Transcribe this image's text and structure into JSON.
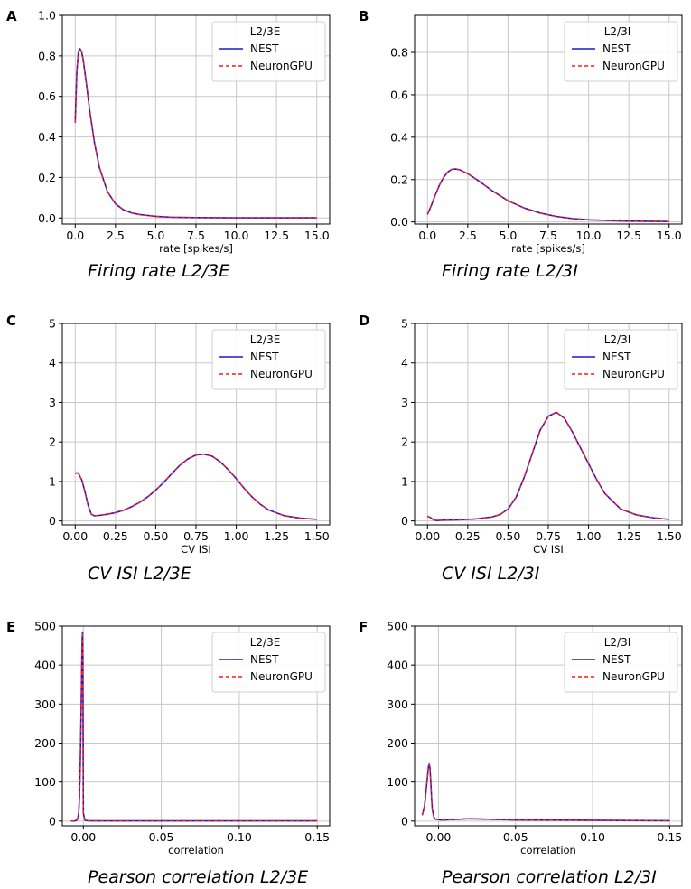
{
  "colors": {
    "nest": "#1a1acc",
    "neurongpu": "#ff1a1a",
    "grid": "#c8c8c8"
  },
  "chart_data": [
    {
      "panel": "A",
      "type": "line",
      "caption": "Firing rate L2/3E",
      "xlabel": "rate [spikes/s]",
      "ylabel": "",
      "xlim": [
        -0.8,
        15.8
      ],
      "ylim": [
        -0.03,
        1.0
      ],
      "xticks": [
        0,
        2.5,
        5,
        7.5,
        10,
        12.5,
        15
      ],
      "xtick_labels": [
        "0.0",
        "2.5",
        "5.0",
        "7.5",
        "10.0",
        "12.5",
        "15.0"
      ],
      "yticks": [
        0,
        0.2,
        0.4,
        0.6,
        0.8,
        1.0
      ],
      "ytick_labels": [
        "0.0",
        "0.2",
        "0.4",
        "0.6",
        "0.8",
        "1.0"
      ],
      "legend": {
        "title": "L2/3E",
        "entries": [
          "NEST",
          "NeuronGPU"
        ],
        "position": "upper right"
      },
      "series": [
        {
          "name": "NEST",
          "style": "solid",
          "x": [
            0,
            0.1,
            0.2,
            0.3,
            0.4,
            0.5,
            0.7,
            0.9,
            1.2,
            1.5,
            2.0,
            2.5,
            3.0,
            3.5,
            4.0,
            5.0,
            6.0,
            7.5,
            10,
            12.5,
            15
          ],
          "y": [
            0.47,
            0.72,
            0.82,
            0.835,
            0.82,
            0.78,
            0.66,
            0.53,
            0.37,
            0.25,
            0.13,
            0.07,
            0.04,
            0.025,
            0.017,
            0.008,
            0.004,
            0.002,
            0.001,
            0.001,
            0.001
          ]
        },
        {
          "name": "NeuronGPU",
          "style": "dashed",
          "x": [
            0,
            0.1,
            0.2,
            0.3,
            0.4,
            0.5,
            0.7,
            0.9,
            1.2,
            1.5,
            2.0,
            2.5,
            3.0,
            3.5,
            4.0,
            5.0,
            6.0,
            7.5,
            10,
            12.5,
            15
          ],
          "y": [
            0.47,
            0.72,
            0.82,
            0.835,
            0.82,
            0.78,
            0.66,
            0.53,
            0.37,
            0.25,
            0.13,
            0.07,
            0.04,
            0.025,
            0.017,
            0.008,
            0.004,
            0.002,
            0.001,
            0.001,
            0.001
          ]
        }
      ]
    },
    {
      "panel": "B",
      "type": "line",
      "caption": "Firing rate L2/3I",
      "xlabel": "rate [spikes/s]",
      "ylabel": "",
      "xlim": [
        -0.8,
        15.8
      ],
      "ylim": [
        -0.01,
        0.975
      ],
      "xticks": [
        0,
        2.5,
        5,
        7.5,
        10,
        12.5,
        15
      ],
      "xtick_labels": [
        "0.0",
        "2.5",
        "5.0",
        "7.5",
        "10.0",
        "12.5",
        "15.0"
      ],
      "yticks": [
        0,
        0.2,
        0.4,
        0.6,
        0.8
      ],
      "ytick_labels": [
        "0.0",
        "0.2",
        "0.4",
        "0.6",
        "0.8"
      ],
      "legend": {
        "title": "L2/3I",
        "entries": [
          "NEST",
          "NeuronGPU"
        ],
        "position": "upper right"
      },
      "series": [
        {
          "name": "NEST",
          "style": "solid",
          "x": [
            0,
            0.25,
            0.5,
            0.75,
            1.0,
            1.25,
            1.5,
            1.75,
            2.0,
            2.5,
            3.0,
            3.5,
            4.0,
            5.0,
            6.0,
            7.0,
            8.0,
            9.0,
            10,
            12.5,
            15
          ],
          "y": [
            0.035,
            0.08,
            0.13,
            0.175,
            0.21,
            0.235,
            0.248,
            0.25,
            0.246,
            0.228,
            0.203,
            0.176,
            0.148,
            0.1,
            0.066,
            0.042,
            0.026,
            0.016,
            0.01,
            0.004,
            0.002
          ]
        },
        {
          "name": "NeuronGPU",
          "style": "dashed",
          "x": [
            0,
            0.25,
            0.5,
            0.75,
            1.0,
            1.25,
            1.5,
            1.75,
            2.0,
            2.5,
            3.0,
            3.5,
            4.0,
            5.0,
            6.0,
            7.0,
            8.0,
            9.0,
            10,
            12.5,
            15
          ],
          "y": [
            0.035,
            0.08,
            0.13,
            0.175,
            0.21,
            0.235,
            0.248,
            0.25,
            0.246,
            0.228,
            0.203,
            0.176,
            0.148,
            0.1,
            0.066,
            0.042,
            0.026,
            0.016,
            0.01,
            0.004,
            0.002
          ]
        }
      ]
    },
    {
      "panel": "C",
      "type": "line",
      "caption": "CV ISI L2/3E",
      "xlabel": "CV ISI",
      "ylabel": "",
      "xlim": [
        -0.08,
        1.58
      ],
      "ylim": [
        -0.1,
        5.0
      ],
      "xticks": [
        0,
        0.25,
        0.5,
        0.75,
        1.0,
        1.25,
        1.5
      ],
      "xtick_labels": [
        "0.00",
        "0.25",
        "0.50",
        "0.75",
        "1.00",
        "1.25",
        "1.50"
      ],
      "yticks": [
        0,
        1,
        2,
        3,
        4,
        5
      ],
      "ytick_labels": [
        "0",
        "1",
        "2",
        "3",
        "4",
        "5"
      ],
      "legend": {
        "title": "L2/3E",
        "entries": [
          "NEST",
          "NeuronGPU"
        ],
        "position": "upper right"
      },
      "series": [
        {
          "name": "NEST",
          "style": "solid",
          "x": [
            0,
            0.01,
            0.02,
            0.04,
            0.06,
            0.08,
            0.1,
            0.12,
            0.15,
            0.2,
            0.25,
            0.3,
            0.35,
            0.4,
            0.45,
            0.5,
            0.55,
            0.6,
            0.65,
            0.7,
            0.75,
            0.8,
            0.85,
            0.9,
            0.95,
            1.0,
            1.05,
            1.1,
            1.15,
            1.2,
            1.3,
            1.4,
            1.5
          ],
          "y": [
            1.2,
            1.22,
            1.2,
            1.05,
            0.75,
            0.4,
            0.17,
            0.13,
            0.14,
            0.17,
            0.21,
            0.27,
            0.36,
            0.47,
            0.61,
            0.78,
            0.98,
            1.2,
            1.41,
            1.57,
            1.67,
            1.69,
            1.64,
            1.5,
            1.3,
            1.07,
            0.82,
            0.6,
            0.42,
            0.28,
            0.13,
            0.07,
            0.04
          ]
        },
        {
          "name": "NeuronGPU",
          "style": "dashed",
          "x": [
            0,
            0.01,
            0.02,
            0.04,
            0.06,
            0.08,
            0.1,
            0.12,
            0.15,
            0.2,
            0.25,
            0.3,
            0.35,
            0.4,
            0.45,
            0.5,
            0.55,
            0.6,
            0.65,
            0.7,
            0.75,
            0.8,
            0.85,
            0.9,
            0.95,
            1.0,
            1.05,
            1.1,
            1.15,
            1.2,
            1.3,
            1.4,
            1.5
          ],
          "y": [
            1.2,
            1.22,
            1.2,
            1.05,
            0.75,
            0.4,
            0.17,
            0.13,
            0.14,
            0.17,
            0.21,
            0.27,
            0.36,
            0.47,
            0.61,
            0.78,
            0.98,
            1.2,
            1.41,
            1.57,
            1.67,
            1.69,
            1.64,
            1.5,
            1.3,
            1.07,
            0.82,
            0.6,
            0.42,
            0.28,
            0.13,
            0.07,
            0.04
          ]
        }
      ]
    },
    {
      "panel": "D",
      "type": "line",
      "caption": "CV ISI L2/3I",
      "xlabel": "CV ISI",
      "ylabel": "",
      "xlim": [
        -0.08,
        1.58
      ],
      "ylim": [
        -0.1,
        5.0
      ],
      "xticks": [
        0,
        0.25,
        0.5,
        0.75,
        1.0,
        1.25,
        1.5
      ],
      "xtick_labels": [
        "0.00",
        "0.25",
        "0.50",
        "0.75",
        "1.00",
        "1.25",
        "1.50"
      ],
      "yticks": [
        0,
        1,
        2,
        3,
        4,
        5
      ],
      "ytick_labels": [
        "0",
        "1",
        "2",
        "3",
        "4",
        "5"
      ],
      "legend": {
        "title": "L2/3I",
        "entries": [
          "NEST",
          "NeuronGPU"
        ],
        "position": "upper right"
      },
      "series": [
        {
          "name": "NEST",
          "style": "solid",
          "x": [
            0,
            0.02,
            0.04,
            0.06,
            0.1,
            0.2,
            0.3,
            0.4,
            0.45,
            0.5,
            0.55,
            0.6,
            0.65,
            0.7,
            0.75,
            0.8,
            0.85,
            0.9,
            0.95,
            1.0,
            1.05,
            1.1,
            1.2,
            1.3,
            1.4,
            1.5
          ],
          "y": [
            0.12,
            0.08,
            0.02,
            0.01,
            0.02,
            0.03,
            0.05,
            0.1,
            0.16,
            0.3,
            0.6,
            1.1,
            1.7,
            2.3,
            2.65,
            2.75,
            2.6,
            2.25,
            1.85,
            1.45,
            1.05,
            0.7,
            0.3,
            0.15,
            0.08,
            0.04
          ]
        },
        {
          "name": "NeuronGPU",
          "style": "dashed",
          "x": [
            0,
            0.02,
            0.04,
            0.06,
            0.1,
            0.2,
            0.3,
            0.4,
            0.45,
            0.5,
            0.55,
            0.6,
            0.65,
            0.7,
            0.75,
            0.8,
            0.85,
            0.9,
            0.95,
            1.0,
            1.05,
            1.1,
            1.2,
            1.3,
            1.4,
            1.5
          ],
          "y": [
            0.12,
            0.08,
            0.02,
            0.01,
            0.02,
            0.03,
            0.05,
            0.1,
            0.16,
            0.3,
            0.6,
            1.1,
            1.7,
            2.3,
            2.65,
            2.75,
            2.6,
            2.25,
            1.85,
            1.45,
            1.05,
            0.7,
            0.3,
            0.15,
            0.08,
            0.04
          ]
        }
      ]
    },
    {
      "panel": "E",
      "type": "line",
      "caption": "Pearson correlation L2/3E",
      "xlabel": "correlation",
      "ylabel": "",
      "xlim": [
        -0.0135,
        0.158
      ],
      "ylim": [
        -12,
        500
      ],
      "xticks": [
        0,
        0.05,
        0.1,
        0.15
      ],
      "xtick_labels": [
        "0.00",
        "0.05",
        "0.10",
        "0.15"
      ],
      "yticks": [
        0,
        100,
        200,
        300,
        400,
        500
      ],
      "ytick_labels": [
        "0",
        "100",
        "200",
        "300",
        "400",
        "500"
      ],
      "legend": {
        "title": "L2/3E",
        "entries": [
          "NEST",
          "NeuronGPU"
        ],
        "position": "upper right"
      },
      "series": [
        {
          "name": "NEST",
          "style": "solid",
          "x": [
            -0.008,
            -0.006,
            -0.005,
            -0.004,
            -0.0035,
            -0.003,
            -0.0025,
            -0.002,
            -0.0015,
            -0.001,
            -0.0007,
            -0.0005,
            -0.0003,
            0.0,
            0.001,
            0.003,
            0.01,
            0.05,
            0.1,
            0.15
          ],
          "y": [
            0,
            0,
            1,
            3,
            8,
            20,
            60,
            140,
            260,
            400,
            470,
            485,
            420,
            20,
            2,
            1,
            0.5,
            0.5,
            0.5,
            0.5
          ]
        },
        {
          "name": "NeuronGPU",
          "style": "dashed",
          "x": [
            -0.008,
            -0.006,
            -0.005,
            -0.004,
            -0.0035,
            -0.003,
            -0.0025,
            -0.002,
            -0.0015,
            -0.001,
            -0.0007,
            -0.0005,
            -0.0003,
            0.0,
            0.001,
            0.003,
            0.01,
            0.05,
            0.1,
            0.15
          ],
          "y": [
            0,
            0,
            1,
            3,
            8,
            20,
            60,
            140,
            260,
            400,
            470,
            485,
            420,
            20,
            2,
            1,
            0.5,
            0.5,
            0.5,
            0.5
          ]
        }
      ]
    },
    {
      "panel": "F",
      "type": "line",
      "caption": "Pearson correlation L2/3I",
      "xlabel": "correlation",
      "ylabel": "",
      "xlim": [
        -0.0155,
        0.158
      ],
      "ylim": [
        -12,
        500
      ],
      "xticks": [
        0,
        0.05,
        0.1,
        0.15
      ],
      "xtick_labels": [
        "0.00",
        "0.05",
        "0.10",
        "0.15"
      ],
      "yticks": [
        0,
        100,
        200,
        300,
        400,
        500
      ],
      "ytick_labels": [
        "0",
        "100",
        "200",
        "300",
        "400",
        "500"
      ],
      "legend": {
        "title": "L2/3I",
        "entries": [
          "NEST",
          "NeuronGPU"
        ],
        "position": "upper right"
      },
      "series": [
        {
          "name": "NEST",
          "style": "solid",
          "x": [
            -0.0105,
            -0.009,
            -0.0075,
            -0.0065,
            -0.006,
            -0.0055,
            -0.005,
            -0.0045,
            -0.004,
            -0.003,
            -0.002,
            -0.001,
            0.002,
            0.01,
            0.02,
            0.03,
            0.05,
            0.1,
            0.15
          ],
          "y": [
            15,
            40,
            100,
            140,
            146,
            135,
            100,
            60,
            30,
            10,
            5,
            4,
            3,
            4,
            6,
            5,
            3,
            2,
            1
          ]
        },
        {
          "name": "NeuronGPU",
          "style": "dashed",
          "x": [
            -0.0105,
            -0.009,
            -0.0075,
            -0.0065,
            -0.006,
            -0.0055,
            -0.005,
            -0.0045,
            -0.004,
            -0.003,
            -0.002,
            -0.001,
            0.002,
            0.01,
            0.02,
            0.03,
            0.05,
            0.1,
            0.15
          ],
          "y": [
            15,
            40,
            100,
            140,
            146,
            135,
            100,
            60,
            30,
            10,
            5,
            4,
            3,
            4,
            6,
            5,
            3,
            2,
            1
          ]
        }
      ]
    }
  ]
}
